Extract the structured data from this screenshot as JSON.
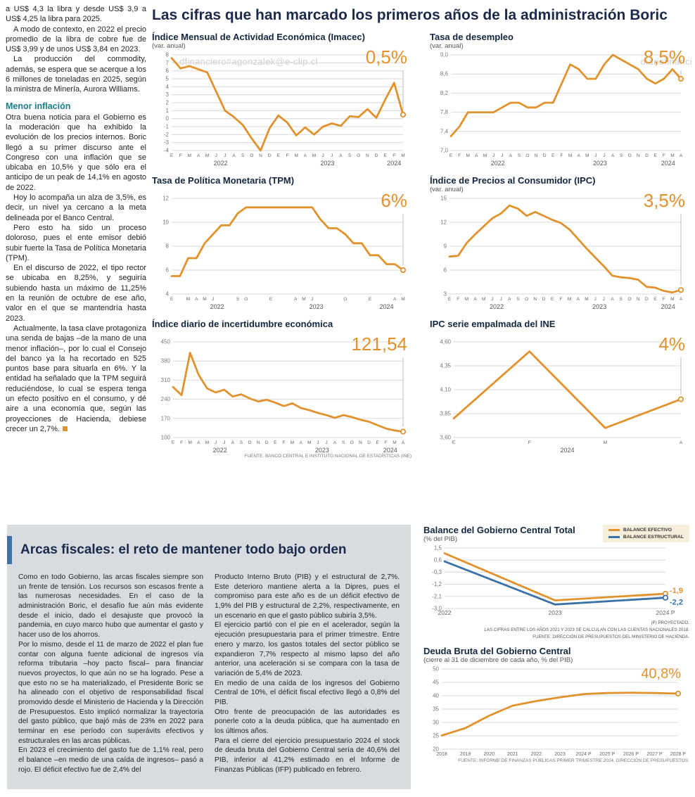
{
  "headline": "Las cifras que han marcado los primeros años de la administración Boric",
  "watermark": {
    "text1": "dfinanciero#agonzalek@e-clip.cl",
    "text2": "diariofinanci",
    "text3": "ero#agonzalez@e-clip.cl"
  },
  "colors": {
    "accent_orange": "#E2922D",
    "structural_blue": "#3A72A8",
    "headline_navy": "#1B2A4A",
    "subhead_teal": "#17808F",
    "panel_gray": "#D8DCE0"
  },
  "left_column": {
    "paragraphs_top": [
      "a US$ 4,3 la libra y desde US$ 3,9 a US$ 4,25 la libra para 2025.",
      "A modo de contexto, en 2022 el precio promedio de la libra de cobre fue de US$ 3,99 y de unos US$ 3,84 en 2023.",
      "La producción del commodity, además, se espera que se acerque a los 6 millones de toneladas en 2025, según la ministra de Minería, Aurora Williams."
    ],
    "subhead": "Menor inflación",
    "paragraphs_inflation": [
      "Otra buena noticia para el Gobierno es la moderación que ha exhibido la evolución de los precios internos. Boric llegó a su primer discurso ante el Congreso con una inflación que se ubicaba en 10,5% y que sólo era el anticipo de un peak de 14,1% en agosto de 2022.",
      "Hoy lo acompaña un alza de 3,5%, es decir, un nivel ya cercano a la meta delineada por el Banco Central.",
      "Pero esto ha sido un proceso doloroso, pues el ente emisor debió subir fuerte la Tasa de Política Monetaria (TPM).",
      "En el discurso de 2022, el tipo rector se ubicaba en 8,25%, y seguiría subiendo hasta un máximo de 11,25% en la reunión de octubre de ese año, valor en el que se mantendría hasta 2023.",
      "Actualmente, la tasa clave protagoniza una senda de bajas –de la mano de una menor inflación–, por lo cual el Consejo del banco ya la ha recortado en 525 puntos base para situarla en 6%. Y la entidad ha señalado que la TPM seguirá reduciéndose, lo cual se espera tenga un efecto positivo en el consumo, y dé aire a una economía que, según las proyecciones de Hacienda, debiese crecer un 2,7%."
    ]
  },
  "fiscal": {
    "heading": "Arcas fiscales: el reto de mantener todo bajo orden",
    "col1": [
      "Como en todo Gobierno, las arcas fiscales siempre son un frente de tensión. Los recursos son escasos frente a las numerosas necesidades. En el caso de la administración Boric, el desafío fue aún más evidente desde el inicio, dado el desajuste que provocó la pandemia, en cuyo marco hubo que aumentar el gasto y hacer uso de los ahorros.",
      "Por lo mismo, desde el 11 de marzo de 2022 el plan fue contar con alguna fuente adicional de ingresos vía reforma tributaria –hoy pacto fiscal– para financiar nuevos proyectos, lo que aún no se ha logrado. Pese a que esto no se ha materializado, el Presidente Boric se ha alineado con el objetivo de responsabilidad fiscal promovido desde el Ministerio de Hacienda y la Dirección de Presupuestos. Esto implicó normalizar la trayectoria del gasto público, que bajó más de 23% en 2022 para terminar en ese período con superávits efectivos y estructurales en las arcas públicas.",
      "En 2023 el crecimiento del gasto fue de 1,1% real, pero el balance –en medio de una caída de ingresos– pasó a rojo. El déficit efectivo fue de 2,4% del"
    ],
    "col2": [
      "Producto Interno Bruto (PIB) y el estructural de 2,7%. Este deterioro mantiene alerta a la Dipres, pues el compromiso para este año es de un déficit efectivo de 1,9% del PIB y estructural de 2,2%, respectivamente, en un escenario en que el gasto público subiría 3,5%.",
      "El ejercicio partió con el pie en el acelerador, según la ejecución presupuestaria para el primer trimestre. Entre enero y marzo, los gastos totales del sector público se expandieron 7,7% respecto al mismo lapso del año anterior, una aceleración si se compara con la tasa de variación de 5,4% de 2023.",
      "En medio de una caída de los ingresos del Gobierno Central de 10%, el déficit fiscal efectivo llegó a 0,8% del PIB.",
      "Otro frente de preocupación de las autoridades es ponerle coto a la deuda pública, que ha aumentado en los últimos años.",
      "Para el cierre del ejercicio presupuestario 2024 el stock de deuda bruta del Gobierno Central sería de 40,6% del PIB, inferior al 41,2% estimado en el Informe de Finanzas Públicas (IFP) publicado en febrero."
    ]
  },
  "chart_data": [
    {
      "type": "line",
      "title": "Índice Mensual de Actividad Económica (Imacec)",
      "subtitle": "(var. anual)",
      "big_label": "0,5%",
      "ymin": -4,
      "ymax": 8,
      "guide": true,
      "yticks": [
        {
          "v": 8,
          "l": "8"
        },
        {
          "v": 7,
          "l": "7"
        },
        {
          "v": 6,
          "l": "6"
        },
        {
          "v": 5,
          "l": "5"
        },
        {
          "v": 4,
          "l": "4"
        },
        {
          "v": 3,
          "l": "3"
        },
        {
          "v": 2,
          "l": "2"
        },
        {
          "v": 1,
          "l": "1"
        },
        {
          "v": 0,
          "l": "0"
        },
        {
          "v": -1,
          "l": "-1"
        },
        {
          "v": -2,
          "l": "-2"
        },
        {
          "v": -3,
          "l": "-3"
        },
        {
          "v": -4,
          "l": "-4"
        }
      ],
      "x_labels": [
        "E",
        "F",
        "M",
        "A",
        "M",
        "J",
        "J",
        "A",
        "S",
        "O",
        "N",
        "D",
        "E",
        "F",
        "M",
        "A",
        "M",
        "J",
        "J",
        "A",
        "S",
        "O",
        "N",
        "D",
        "E",
        "F",
        "M"
      ],
      "years": [
        {
          "l": "2022",
          "c": 5.5
        },
        {
          "l": "2023",
          "c": 17.5
        },
        {
          "l": "2024",
          "c": 25
        }
      ],
      "series": [
        {
          "name": "Imacec",
          "color": "#E2922D",
          "values": [
            7.6,
            6.3,
            6.6,
            6.2,
            5.8,
            3.4,
            1.0,
            0.2,
            -0.8,
            -2.5,
            -4.0,
            -1.2,
            0.4,
            -0.5,
            -2.1,
            -1.1,
            -2.0,
            -1.0,
            -0.6,
            -0.9,
            0.3,
            0.2,
            1.2,
            0.1,
            2.4,
            4.5,
            0.5
          ]
        }
      ]
    },
    {
      "type": "line",
      "title": "Tasa de desempleo",
      "subtitle": "(var. anual)",
      "big_label": "8,5%",
      "ymin": 7.0,
      "ymax": 9.0,
      "guide": true,
      "ml": 30,
      "yticks": [
        {
          "v": 9.0,
          "l": "9,0"
        },
        {
          "v": 8.6,
          "l": "8,6"
        },
        {
          "v": 8.2,
          "l": "8,2"
        },
        {
          "v": 7.8,
          "l": "7,8"
        },
        {
          "v": 7.4,
          "l": "7,4"
        },
        {
          "v": 7.0,
          "l": "7,0"
        }
      ],
      "x_labels": [
        "E",
        "F",
        "M",
        "A",
        "M",
        "J",
        "J",
        "A",
        "S",
        "O",
        "N",
        "D",
        "E",
        "F",
        "M",
        "A",
        "M",
        "J",
        "J",
        "A",
        "S",
        "O",
        "N",
        "D",
        "E",
        "F",
        "M",
        "A"
      ],
      "years": [
        {
          "l": "2022",
          "c": 5.5
        },
        {
          "l": "2023",
          "c": 17.5
        },
        {
          "l": "2024",
          "c": 25.5
        }
      ],
      "series": [
        {
          "name": "Tasa de desempleo",
          "color": "#E2922D",
          "values": [
            7.3,
            7.5,
            7.8,
            7.8,
            7.8,
            7.8,
            7.9,
            8.0,
            8.0,
            7.9,
            7.9,
            8.0,
            8.0,
            8.4,
            8.8,
            8.7,
            8.5,
            8.5,
            8.8,
            9.0,
            8.9,
            8.8,
            8.7,
            8.5,
            8.4,
            8.5,
            8.7,
            8.5
          ]
        }
      ]
    },
    {
      "type": "line",
      "title": "Tasa de Política Monetaria (TPM)",
      "big_label": "6%",
      "ymin": 4,
      "ymax": 12,
      "guide": true,
      "yticks": [
        {
          "v": 12,
          "l": "12"
        },
        {
          "v": 10,
          "l": "10"
        },
        {
          "v": 8,
          "l": "8"
        },
        {
          "v": 6,
          "l": "6"
        },
        {
          "v": 4,
          "l": "4"
        }
      ],
      "x_labels": [
        "E",
        "",
        "M",
        "A",
        "M",
        "J",
        "",
        "",
        "S",
        "O",
        "",
        "",
        "E",
        "",
        "",
        "A",
        "M",
        "J",
        "",
        "",
        "",
        "O",
        "",
        "",
        "E",
        "",
        "",
        "A",
        "M"
      ],
      "years": [
        {
          "l": "2022",
          "c": 5.5
        },
        {
          "l": "2023",
          "c": 17.5
        },
        {
          "l": "2024",
          "c": 26
        }
      ],
      "series": [
        {
          "name": "TPM",
          "color": "#E2922D",
          "values": [
            5.5,
            5.5,
            7.0,
            7.0,
            8.25,
            9.0,
            9.75,
            9.75,
            10.75,
            11.25,
            11.25,
            11.25,
            11.25,
            11.25,
            11.25,
            11.25,
            11.25,
            11.25,
            10.25,
            9.5,
            9.5,
            9.0,
            8.25,
            8.25,
            7.25,
            7.25,
            6.5,
            6.5,
            6.0
          ]
        }
      ]
    },
    {
      "type": "line",
      "title": "Índice de Precios al Consumidor (IPC)",
      "subtitle": "(var. anual)",
      "big_label": "3,5%",
      "ymin": 3,
      "ymax": 15,
      "guide": true,
      "yticks": [
        {
          "v": 15,
          "l": "15"
        },
        {
          "v": 12,
          "l": "12"
        },
        {
          "v": 9,
          "l": "9"
        },
        {
          "v": 6,
          "l": "6"
        },
        {
          "v": 3,
          "l": "3"
        }
      ],
      "x_labels": [
        "E",
        "F",
        "M",
        "A",
        "M",
        "J",
        "J",
        "A",
        "S",
        "O",
        "N",
        "D",
        "E",
        "F",
        "M",
        "A",
        "M",
        "J",
        "J",
        "A",
        "S",
        "O",
        "N",
        "D",
        "E",
        "F",
        "M",
        "A"
      ],
      "years": [
        {
          "l": "2022",
          "c": 5.5
        },
        {
          "l": "2023",
          "c": 17.5
        },
        {
          "l": "2024",
          "c": 25.5
        }
      ],
      "series": [
        {
          "name": "IPC",
          "color": "#E2922D",
          "values": [
            7.7,
            7.8,
            9.4,
            10.5,
            11.5,
            12.5,
            13.1,
            14.1,
            13.7,
            12.8,
            13.3,
            12.8,
            12.3,
            11.9,
            11.1,
            9.9,
            8.7,
            7.6,
            6.5,
            5.3,
            5.1,
            5.0,
            4.8,
            3.9,
            3.8,
            3.4,
            3.2,
            3.5
          ]
        }
      ]
    },
    {
      "type": "line",
      "title": "Índice diario de incertidumbre económica",
      "big_label": "121,54",
      "ymin": 100,
      "ymax": 450,
      "guide": true,
      "ml": 30,
      "yticks": [
        {
          "v": 450,
          "l": "450"
        },
        {
          "v": 380,
          "l": "380"
        },
        {
          "v": 310,
          "l": "310"
        },
        {
          "v": 240,
          "l": "240"
        },
        {
          "v": 170,
          "l": "170"
        },
        {
          "v": 100,
          "l": "100"
        }
      ],
      "x_labels": [
        "E",
        "F",
        "M",
        "A",
        "M",
        "J",
        "J",
        "A",
        "S",
        "O",
        "N",
        "D",
        "E",
        "F",
        "M",
        "A",
        "M",
        "J",
        "J",
        "A",
        "S",
        "O",
        "N",
        "D",
        "E",
        "F",
        "M",
        "A"
      ],
      "years": [
        {
          "l": "2022",
          "c": 5.5
        },
        {
          "l": "2023",
          "c": 17.5
        },
        {
          "l": "2024",
          "c": 25.5
        }
      ],
      "series": [
        {
          "name": "Incertidumbre económica",
          "color": "#E2922D",
          "values": [
            285,
            255,
            410,
            330,
            280,
            265,
            275,
            250,
            258,
            243,
            232,
            238,
            228,
            215,
            225,
            208,
            200,
            190,
            182,
            172,
            182,
            175,
            165,
            158,
            145,
            133,
            126,
            121.54
          ]
        }
      ],
      "source": "FUENTE: BANCO CENTRAL E INSTITUTO NACIONAL DE ESTADÍSTICAS (INE)"
    },
    {
      "type": "line",
      "title": "IPC serie empalmada del INE",
      "big_label": "4%",
      "ymin": 3.6,
      "ymax": 4.6,
      "guide": true,
      "ml": 34,
      "yticks": [
        {
          "v": 4.6,
          "l": "4,60"
        },
        {
          "v": 4.35,
          "l": "4,35"
        },
        {
          "v": 4.1,
          "l": "4,10"
        },
        {
          "v": 3.85,
          "l": "3,85"
        },
        {
          "v": 3.6,
          "l": "3,60"
        }
      ],
      "x_labels": [
        "E",
        "F",
        "M",
        "A"
      ],
      "years": [
        {
          "l": "2024",
          "c": 1.5
        }
      ],
      "series": [
        {
          "name": "IPC serie empalmada",
          "color": "#E2922D",
          "values": [
            3.8,
            4.5,
            3.7,
            4.0
          ]
        }
      ]
    },
    {
      "type": "line",
      "title": "Balance del Gobierno Central Total",
      "subtitle": "(% del PIB)",
      "ymin": -3.0,
      "ymax": 1.5,
      "ml": 30,
      "mr": 34,
      "xfs": 8.5,
      "show_legend": true,
      "yticks": [
        {
          "v": 1.5,
          "l": "1,5"
        },
        {
          "v": 0.6,
          "l": "0,6"
        },
        {
          "v": -0.3,
          "l": "-0,3"
        },
        {
          "v": -1.2,
          "l": "-1,2"
        },
        {
          "v": -2.1,
          "l": "-2,1"
        },
        {
          "v": -3.0,
          "l": "-3,0"
        }
      ],
      "x_labels": [
        "2022",
        "2023",
        "2024 P"
      ],
      "series": [
        {
          "name": "BALANCE EFECTIVO",
          "color": "#E2922D",
          "values": [
            1.1,
            -2.4,
            -1.9
          ],
          "end_label": "-1,9",
          "end_dy": -1
        },
        {
          "name": "BALANCE ESTRUCTURAL",
          "color": "#3A72A8",
          "values": [
            0.5,
            -2.7,
            -2.2
          ],
          "end_label": "-2,2",
          "end_dy": 10
        }
      ],
      "footnotes": [
        "(P) PROYECTADO.",
        "LAS CIFRAS ENTRE LOS AÑOS 2021 Y 2023 SE CALCULAN CON LAS CUENTAS NACIONALES 2018.",
        "FUENTE: DIRECCIÓN DE PRESUPUESTOS DEL MINISTERIO DE HACIENDA."
      ]
    },
    {
      "type": "line",
      "title": "Deuda Bruta del Gobierno Central",
      "subtitle": "(cierre al 31 de diciembre de cada año, % del PIB)",
      "big_label": "40,8%",
      "ymin": 20,
      "ymax": 50,
      "ml": 26,
      "mr": 16,
      "xfs": 7,
      "yticks": [
        {
          "v": 50,
          "l": "50"
        },
        {
          "v": 45,
          "l": "45"
        },
        {
          "v": 40,
          "l": "40"
        },
        {
          "v": 35,
          "l": "35"
        },
        {
          "v": 30,
          "l": "30"
        },
        {
          "v": 25,
          "l": "25"
        },
        {
          "v": 20,
          "l": "20"
        }
      ],
      "x_labels": [
        "2018",
        "2019",
        "2020",
        "2021",
        "2022",
        "2023",
        "2024 P",
        "2025 P",
        "2026 P",
        "2027 P",
        "2028 P"
      ],
      "series": [
        {
          "name": "Deuda bruta",
          "color": "#E2922D",
          "values": [
            25.1,
            27.9,
            32.5,
            36.3,
            38.0,
            39.4,
            40.6,
            41.0,
            41.1,
            41.0,
            40.8
          ]
        }
      ],
      "source": "FUENTE: INFORME DE FINANZAS PÚBLICAS PRIMER TRIMESTRE 2024, DIRECCIÓN DE PRESUPUESTOS."
    }
  ]
}
